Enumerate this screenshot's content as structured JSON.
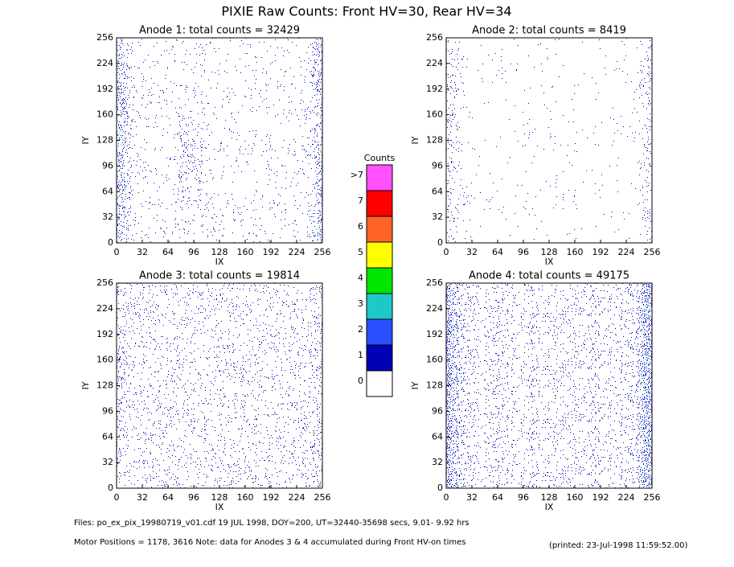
{
  "title": "PIXIE Raw Counts:  Front HV=30, Rear HV=34",
  "chart_data": [
    {
      "type": "heatmap",
      "title": "Anode 1: total counts = 32429",
      "xlabel": "IX",
      "ylabel": "IY",
      "xlim": [
        0,
        256
      ],
      "ylim": [
        0,
        256
      ],
      "xticks": [
        0,
        32,
        64,
        96,
        128,
        160,
        192,
        224,
        256
      ],
      "yticks": [
        0,
        32,
        64,
        96,
        128,
        160,
        192,
        224,
        256
      ]
    },
    {
      "type": "heatmap",
      "title": "Anode 2: total counts = 8419",
      "xlabel": "IX",
      "ylabel": "IY",
      "xlim": [
        0,
        256
      ],
      "ylim": [
        0,
        256
      ],
      "xticks": [
        0,
        32,
        64,
        96,
        128,
        160,
        192,
        224,
        256
      ],
      "yticks": [
        0,
        32,
        64,
        96,
        128,
        160,
        192,
        224,
        256
      ]
    },
    {
      "type": "heatmap",
      "title": "Anode 3: total counts = 19814",
      "xlabel": "IX",
      "ylabel": "IY",
      "xlim": [
        0,
        256
      ],
      "ylim": [
        0,
        256
      ],
      "xticks": [
        0,
        32,
        64,
        96,
        128,
        160,
        192,
        224,
        256
      ],
      "yticks": [
        0,
        32,
        64,
        96,
        128,
        160,
        192,
        224,
        256
      ]
    },
    {
      "type": "heatmap",
      "title": "Anode 4: total counts = 49175",
      "xlabel": "IX",
      "ylabel": "IY",
      "xlim": [
        0,
        256
      ],
      "ylim": [
        0,
        256
      ],
      "xticks": [
        0,
        32,
        64,
        96,
        128,
        160,
        192,
        224,
        256
      ],
      "yticks": [
        0,
        32,
        64,
        96,
        128,
        160,
        192,
        224,
        256
      ]
    }
  ],
  "colorbar": {
    "title": "Counts",
    "labels": [
      "0",
      "1",
      "2",
      "3",
      "4",
      "5",
      "6",
      "7",
      ">7"
    ],
    "colors": [
      "#ffffff",
      "#0000b4",
      "#2850ff",
      "#1ec8c8",
      "#00e600",
      "#ffff00",
      "#ff6428",
      "#ff0000",
      "#ff50ff"
    ]
  },
  "footer": {
    "files": "Files: po_ex_pix_19980719_v01.cdf    19 JUL 1998, DOY=200, UT=32440-35698 secs,  9.01- 9.92 hrs",
    "motor": "Motor Positions = 1178, 3616    Note: data for Anodes 3 & 4 accumulated during Front HV-on times",
    "printed": "(printed: 23-Jul-1998 11:59:52.00)"
  }
}
